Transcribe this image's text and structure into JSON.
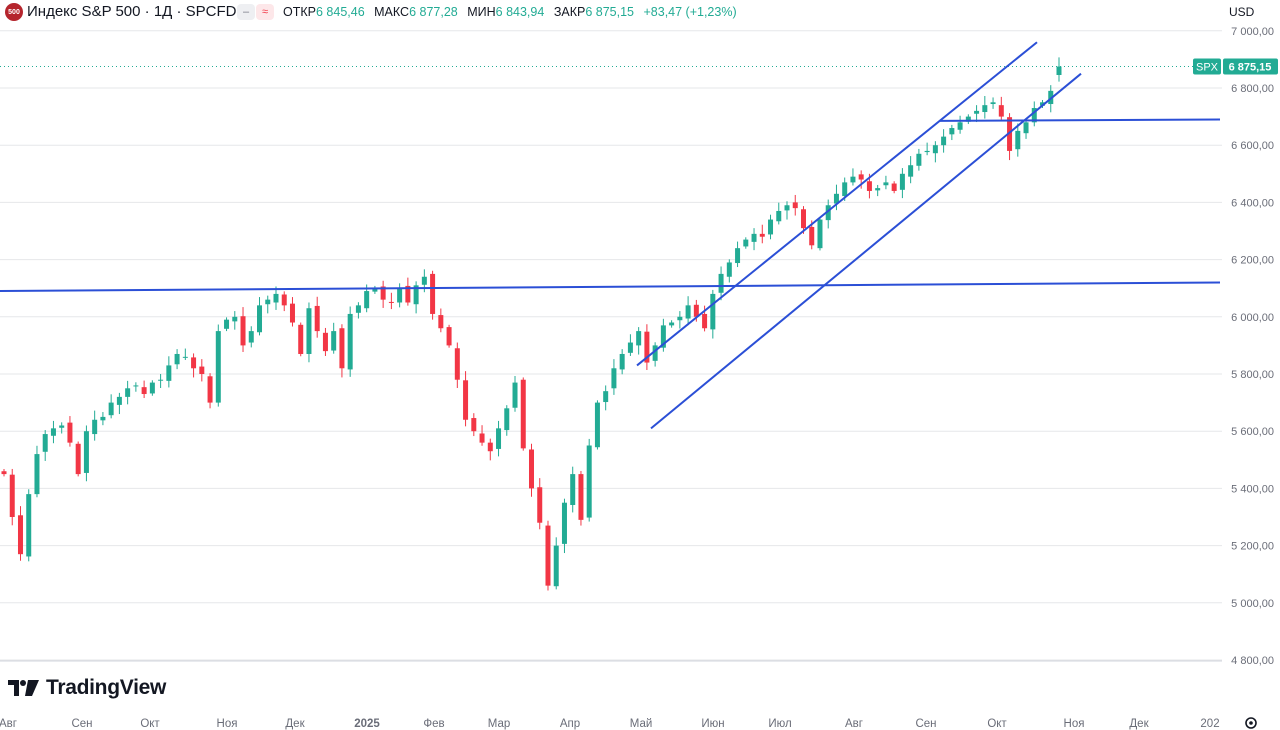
{
  "header": {
    "badge": "500",
    "title": "Индекс S&P 500 · 1Д · SPCFD",
    "ohlc": [
      {
        "key": "ОТКР",
        "value": "6 845,46"
      },
      {
        "key": "МАКС",
        "value": "6 877,28"
      },
      {
        "key": "МИН",
        "value": "6 843,94"
      },
      {
        "key": "ЗАКР",
        "value": "6 875,15"
      }
    ],
    "change": "+83,47 (+1,23%)",
    "currency": "USD"
  },
  "price_tag": {
    "symbol": "SPX",
    "value": "6 875,15"
  },
  "logo_text": "TradingView",
  "icons": {
    "minus": "minus-icon",
    "approx": "approx-icon",
    "settings": "gear-icon",
    "logo": "tradingview-logo-icon"
  },
  "colors": {
    "up": "#22ab94",
    "down": "#f23645",
    "drawing": "#2b4fd6",
    "grid": "#e6e7ea"
  },
  "chart_data": {
    "type": "candlestick",
    "title": "Индекс S&P 500 · 1Д · SPCFD",
    "y_ticks": [
      "7 000,00",
      "6 800,00",
      "6 600,00",
      "6 400,00",
      "6 200,00",
      "6 000,00",
      "5 800,00",
      "5 600,00",
      "5 400,00",
      "5 200,00",
      "5 000,00",
      "4 800,00"
    ],
    "y_tick_values": [
      7000,
      6800,
      6600,
      6400,
      6200,
      6000,
      5800,
      5600,
      5400,
      5200,
      5000,
      4800
    ],
    "ylim": [
      4770,
      7060
    ],
    "x_ticks": [
      "Авг",
      "Сен",
      "Окт",
      "Ноя",
      "Дек",
      "2025",
      "Фев",
      "Мар",
      "Апр",
      "Май",
      "Июн",
      "Июл",
      "Авг",
      "Сен",
      "Окт",
      "Ноя",
      "Дек",
      "202"
    ],
    "x_tick_bold": [
      false,
      false,
      false,
      false,
      false,
      true,
      false,
      false,
      false,
      false,
      false,
      false,
      false,
      false,
      false,
      false,
      false,
      false
    ],
    "last_price": 6875.15,
    "closes_estimated": [
      5450,
      5300,
      5170,
      5380,
      5520,
      5590,
      5610,
      5620,
      5560,
      5450,
      5600,
      5640,
      5650,
      5700,
      5720,
      5750,
      5760,
      5730,
      5770,
      5780,
      5830,
      5870,
      5860,
      5820,
      5800,
      5700,
      5950,
      5990,
      6000,
      5900,
      5950,
      6040,
      6060,
      6080,
      6040,
      5980,
      5870,
      6030,
      5950,
      5880,
      5950,
      5820,
      6010,
      6040,
      6090,
      6100,
      6060,
      6050,
      6100,
      6050,
      6110,
      6140,
      6010,
      5960,
      5900,
      5780,
      5640,
      5600,
      5560,
      5530,
      5610,
      5680,
      5770,
      5540,
      5400,
      5280,
      5060,
      5200,
      5350,
      5450,
      5290,
      5550,
      5700,
      5740,
      5820,
      5870,
      5910,
      5950,
      5840,
      5900,
      5970,
      5980,
      6000,
      6040,
      6000,
      5960,
      6080,
      6150,
      6190,
      6240,
      6270,
      6290,
      6280,
      6340,
      6370,
      6390,
      6380,
      6310,
      6250,
      6340,
      6390,
      6430,
      6470,
      6490,
      6480,
      6440,
      6450,
      6470,
      6440,
      6500,
      6530,
      6570,
      6580,
      6600,
      6630,
      6660,
      6680,
      6700,
      6720,
      6740,
      6750,
      6700,
      6580,
      6650,
      6680,
      6730,
      6750,
      6790,
      6875
    ]
  },
  "drawings": [
    {
      "name": "resistance-line-2024",
      "from": [
        0,
        6090
      ],
      "to": [
        1220,
        6120
      ]
    },
    {
      "name": "channel-upper-line",
      "from": [
        637,
        5830
      ],
      "to": [
        1037,
        6960
      ]
    },
    {
      "name": "channel-lower-line",
      "from": [
        651,
        5610
      ],
      "to": [
        1081,
        6850
      ]
    },
    {
      "name": "horizontal-line-oct",
      "from": [
        940,
        6685
      ],
      "to": [
        1220,
        6690
      ]
    }
  ]
}
